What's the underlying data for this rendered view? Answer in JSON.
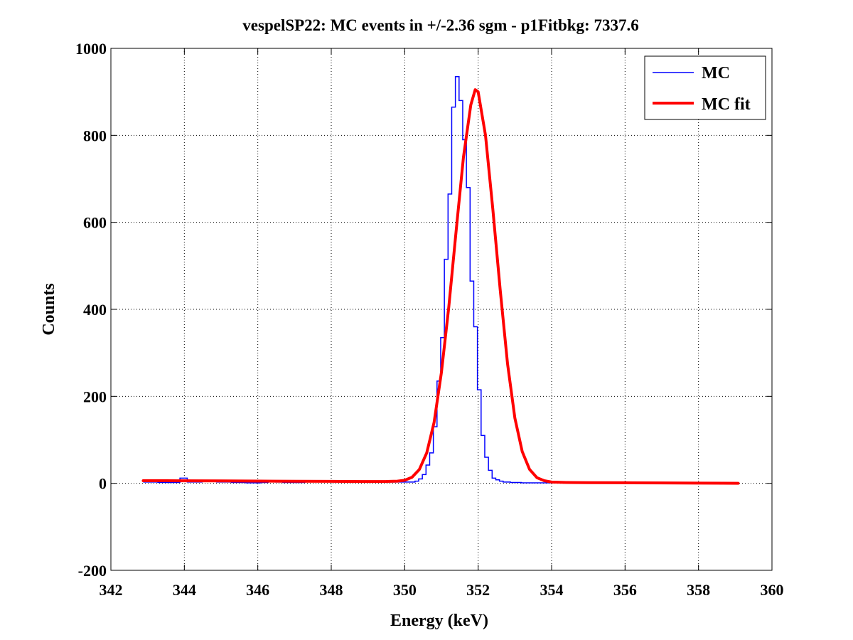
{
  "chart_data": {
    "type": "line",
    "title": "vespelSP22: MC events in +/-2.36 sgm - p1Fitbkg: 7337.6",
    "xlabel": "Energy (keV)",
    "ylabel": "Counts",
    "xlim": [
      342,
      360
    ],
    "ylim": [
      -200,
      1000
    ],
    "xticks": [
      "342",
      "344",
      "346",
      "348",
      "350",
      "352",
      "354",
      "356",
      "358",
      "360"
    ],
    "yticks": [
      "-200",
      "0",
      "200",
      "400",
      "600",
      "800",
      "1000"
    ],
    "grid": true,
    "legend": {
      "position": "top-right",
      "entries": [
        "MC",
        "MC fit"
      ]
    },
    "series": [
      {
        "name": "MC",
        "style": "stairs",
        "color": "#0000ff",
        "x": [
          342.88,
          343.28,
          343.88,
          344.08,
          344.48,
          344.68,
          344.88,
          345.28,
          345.68,
          346.08,
          346.28,
          346.48,
          346.68,
          347.08,
          347.28,
          348.08,
          348.28,
          348.48,
          349.88,
          350.08,
          350.28,
          350.38,
          350.48,
          350.58,
          350.68,
          350.78,
          350.88,
          350.98,
          351.08,
          351.18,
          351.28,
          351.38,
          351.48,
          351.58,
          351.68,
          351.78,
          351.88,
          351.98,
          352.08,
          352.18,
          352.28,
          352.38,
          352.48,
          352.58,
          352.68,
          352.78,
          352.88,
          352.98,
          353.08,
          353.18,
          353.28,
          353.38,
          353.48,
          353.58,
          353.68,
          353.88,
          354.08,
          354.48,
          354.88,
          356.68,
          358.68
        ],
        "values": [
          3,
          2,
          12,
          3,
          4,
          7,
          3,
          2,
          1,
          2,
          6,
          3,
          2,
          2,
          5,
          3,
          6,
          3,
          3,
          3,
          5,
          10,
          20,
          42,
          70,
          130,
          235,
          335,
          515,
          665,
          865,
          935,
          880,
          790,
          680,
          465,
          360,
          215,
          110,
          60,
          30,
          12,
          8,
          5,
          3,
          3,
          2,
          2,
          2,
          1,
          1,
          1,
          1,
          1,
          1,
          1,
          1,
          1,
          1,
          1,
          0
        ],
        "x_end": 359.08
      },
      {
        "name": "MC fit",
        "style": "line",
        "color": "#ff0000",
        "x": [
          342.88,
          343.5,
          344,
          345,
          346,
          347,
          348,
          349,
          349.5,
          349.8,
          350,
          350.2,
          350.4,
          350.6,
          350.8,
          351,
          351.2,
          351.4,
          351.6,
          351.8,
          351.92,
          352.0,
          352.2,
          352.4,
          352.6,
          352.8,
          353.0,
          353.2,
          353.4,
          353.6,
          353.8,
          354.0,
          354.4,
          355,
          356,
          357,
          358,
          359.08
        ],
        "values": [
          6,
          6,
          5.8,
          5.5,
          5.2,
          4.8,
          4.5,
          4.1,
          4.3,
          5,
          7,
          14,
          32,
          70,
          140,
          255,
          405,
          580,
          750,
          870,
          905,
          900,
          800,
          630,
          445,
          275,
          150,
          73,
          32,
          13,
          6,
          3,
          2,
          1.5,
          1.2,
          0.8,
          0.5,
          0
        ]
      }
    ]
  }
}
